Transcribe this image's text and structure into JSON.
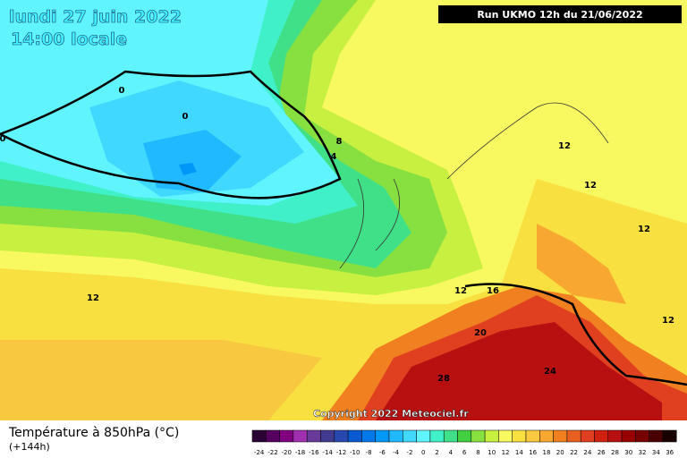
{
  "header": {
    "date": "lundi 27 juin 2022",
    "time": "14:00 locale",
    "run": "Run UKMO 12h du 21/06/2022"
  },
  "copyright": "Copyright 2022 Meteociel.fr",
  "legend": {
    "title": "Température à 850hPa (°C)",
    "lead": "(+144h)"
  },
  "colorbar": {
    "values": [
      -24,
      -22,
      -20,
      -18,
      -16,
      -14,
      -12,
      -10,
      -8,
      -6,
      -4,
      -2,
      0,
      2,
      4,
      6,
      8,
      10,
      12,
      14,
      16,
      18,
      20,
      22,
      24,
      26,
      28,
      30,
      32,
      34,
      36
    ],
    "colors": [
      "#2a0033",
      "#55005f",
      "#800080",
      "#a030b0",
      "#6a3a9a",
      "#403a90",
      "#2848b0",
      "#0858d0",
      "#0078e8",
      "#0098f8",
      "#20b8ff",
      "#40d8ff",
      "#60f4ff",
      "#40f0c8",
      "#40e088",
      "#40d040",
      "#88e040",
      "#c8f040",
      "#f8f860",
      "#f8e040",
      "#f8c840",
      "#f8a830",
      "#f08020",
      "#e86020",
      "#e04020",
      "#d02010",
      "#b81010",
      "#980000",
      "#780000",
      "#480000",
      "#180000"
    ]
  },
  "contour_labels": [
    0,
    0,
    0,
    4,
    8,
    12,
    12,
    12,
    12,
    12,
    12,
    16,
    20,
    24,
    28
  ]
}
